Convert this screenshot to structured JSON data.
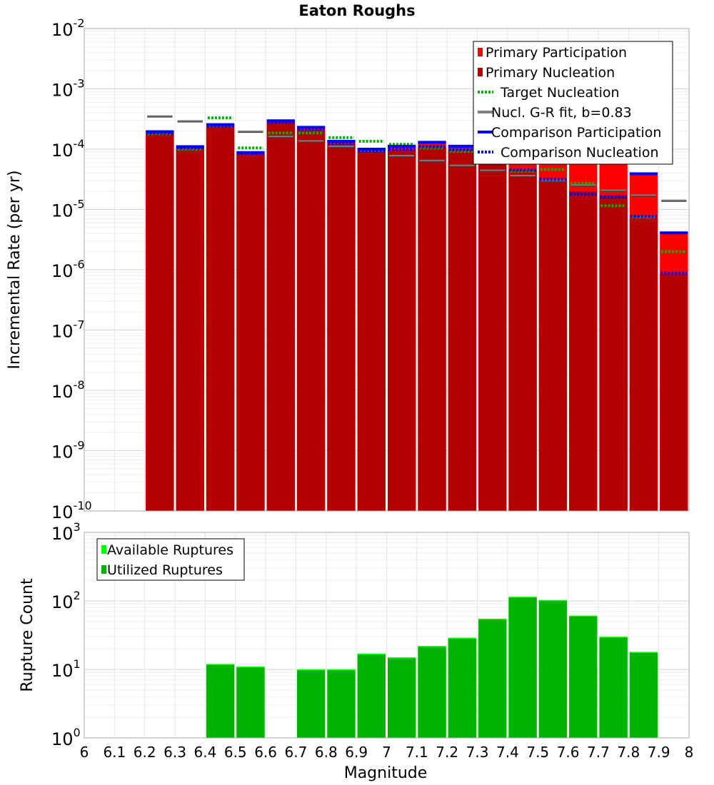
{
  "chart_data": [
    {
      "type": "bar",
      "panel": "top",
      "title": "Eaton Roughs",
      "xlabel": "",
      "ylabel": "Incremental Rate (per yr)",
      "xlim": [
        6,
        8
      ],
      "ylim": [
        1e-10,
        0.01
      ],
      "y_scale": "log",
      "grid": true,
      "legend_placement": "top-right",
      "bin_width": 0.1,
      "categories": [
        6.25,
        6.35,
        6.45,
        6.55,
        6.65,
        6.75,
        6.85,
        6.95,
        7.05,
        7.15,
        7.25,
        7.35,
        7.45,
        7.55,
        7.65,
        7.75,
        7.85,
        7.95
      ],
      "series": [
        {
          "name": "Primary Participation",
          "color": "#ff0000",
          "style": "bar",
          "values": [
            0.00019,
            0.000105,
            0.00025,
            8.6e-05,
            0.00029,
            0.000225,
            0.00013,
            9.5e-05,
            0.000107,
            0.000125,
            0.000109,
            0.00015,
            9.6e-05,
            8.5e-05,
            6.5e-05,
            6.5e-05,
            3.7e-05,
            3.9e-06
          ]
        },
        {
          "name": "Primary Nucleation",
          "color": "#b30000",
          "style": "bar",
          "values": [
            0.00018,
            0.0001,
            0.00024,
            8.3e-05,
            0.000275,
            0.00021,
            0.00012,
            9e-05,
            9.8e-05,
            0.000106,
            9.5e-05,
            6.9e-05,
            4.5e-05,
            3.1e-05,
            2e-05,
            1.75e-05,
            7.2e-06,
            8.5e-07
          ]
        },
        {
          "name": "Target Nucleation",
          "color": "#00b300",
          "style": "dotted",
          "values": [
            0.00018,
            0.0001,
            0.00033,
            0.000105,
            0.000185,
            0.000185,
            0.000155,
            0.000135,
            0.00012,
            0.000105,
            9.2e-05,
            6.8e-05,
            4.3e-05,
            4.6e-05,
            2.7e-05,
            1.15e-05,
            7.5e-06,
            2e-06
          ]
        },
        {
          "name": "Nucl. G-R fit, b=0.83",
          "color": "#808080",
          "style": "gray",
          "values": [
            0.00035,
            0.00029,
            0.00024,
            0.000195,
            0.00016,
            0.000135,
            0.00011,
            9.3e-05,
            7.7e-05,
            6.4e-05,
            5.3e-05,
            4.4e-05,
            3.6e-05,
            3e-05,
            2.5e-05,
            2.05e-05,
            1.7e-05,
            1.4e-05
          ]
        },
        {
          "name": "Comparison Participation",
          "color": "#0000ff",
          "style": "solid",
          "values": [
            0.000195,
            0.00011,
            0.000255,
            8.8e-05,
            0.000295,
            0.00023,
            0.000135,
            0.0001,
            0.000112,
            0.00013,
            0.000112,
            0.00015,
            9.6e-05,
            8.5e-05,
            6.5e-05,
            6.5e-05,
            3.9e-05,
            4.1e-06
          ]
        },
        {
          "name": "Comparison Nucleation",
          "color": "#0000ff",
          "style": "dotted",
          "values": [
            0.000185,
            0.000105,
            0.000245,
            8.5e-05,
            0.00028,
            0.000215,
            0.000125,
            9.3e-05,
            0.0001,
            0.00011,
            9.8e-05,
            7e-05,
            4.5e-05,
            3.2e-05,
            1.8e-05,
            1.6e-05,
            7.7e-06,
            8.8e-07
          ]
        }
      ],
      "ytick_labels": [
        {
          "base": "10",
          "exp": "-10"
        },
        {
          "base": "10",
          "exp": "-9"
        },
        {
          "base": "10",
          "exp": "-8"
        },
        {
          "base": "10",
          "exp": "-7"
        },
        {
          "base": "10",
          "exp": "-6"
        },
        {
          "base": "10",
          "exp": "-5"
        },
        {
          "base": "10",
          "exp": "-4"
        },
        {
          "base": "10",
          "exp": "-3"
        },
        {
          "base": "10",
          "exp": "-2"
        }
      ]
    },
    {
      "type": "bar",
      "panel": "bottom",
      "title": "",
      "xlabel": "Magnitude",
      "ylabel": "Rupture Count",
      "xlim": [
        6,
        8
      ],
      "ylim": [
        1,
        1000
      ],
      "y_scale": "log",
      "grid": true,
      "legend_placement": "top-left",
      "bin_width": 0.1,
      "categories": [
        6.45,
        6.55,
        6.75,
        6.85,
        6.95,
        7.05,
        7.15,
        7.25,
        7.35,
        7.45,
        7.55,
        7.65,
        7.75,
        7.85
      ],
      "series": [
        {
          "name": "Available Ruptures",
          "color": "#00ff00",
          "values": [
            12,
            11,
            10,
            10,
            17,
            15,
            22,
            29,
            55,
            115,
            103,
            61,
            30,
            18
          ]
        },
        {
          "name": "Utilized Ruptures",
          "color": "#00b300",
          "values": [
            12,
            11,
            10,
            10,
            17,
            15,
            22,
            29,
            55,
            115,
            103,
            61,
            30,
            18
          ]
        }
      ],
      "ytick_labels": [
        {
          "base": "10",
          "exp": "0"
        },
        {
          "base": "10",
          "exp": "1"
        },
        {
          "base": "10",
          "exp": "2"
        },
        {
          "base": "10",
          "exp": "3"
        }
      ],
      "xtick_labels": [
        "6",
        "6.1",
        "6.2",
        "6.3",
        "6.4",
        "6.5",
        "6.6",
        "6.7",
        "6.8",
        "6.9",
        "7",
        "7.1",
        "7.2",
        "7.3",
        "7.4",
        "7.5",
        "7.6",
        "7.7",
        "7.8",
        "7.9",
        "8"
      ]
    }
  ]
}
